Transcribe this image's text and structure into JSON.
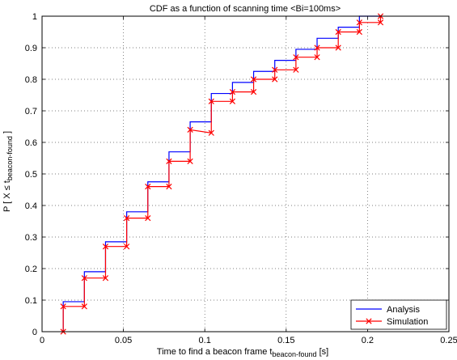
{
  "chart_data": {
    "type": "line",
    "title": "CDF as a function of scanning time <Bi=100ms>",
    "xlabel": "Time to find a beacon frame t",
    "xlabel_sub": "beacon-found",
    "xlabel_unit": " [s]",
    "ylabel_pre": "P [ X ≤ t",
    "ylabel_sub": "beacon-found",
    "ylabel_post": " ]",
    "xlim": [
      0,
      0.25
    ],
    "ylim": [
      0,
      1
    ],
    "xticks": [
      0,
      0.05,
      0.1,
      0.15,
      0.2,
      0.25
    ],
    "xtick_labels": [
      "0",
      "0.05",
      "0.1",
      "0.15",
      "0.2",
      "0.25"
    ],
    "yticks": [
      0,
      0.1,
      0.2,
      0.3,
      0.4,
      0.5,
      0.6,
      0.7,
      0.8,
      0.9,
      1
    ],
    "ytick_labels": [
      "0",
      "0.1",
      "0.2",
      "0.3",
      "0.4",
      "0.5",
      "0.6",
      "0.7",
      "0.8",
      "0.9",
      "1"
    ],
    "grid": true,
    "legend_position": "bottom-right",
    "series": [
      {
        "name": "Analysis",
        "color": "#0000ff",
        "marker": "none",
        "style": "step",
        "x": [
          0.013,
          0.026,
          0.039,
          0.052,
          0.065,
          0.078,
          0.091,
          0.104,
          0.117,
          0.13,
          0.143,
          0.156,
          0.169,
          0.182,
          0.195,
          0.208
        ],
        "y": [
          0.095,
          0.19,
          0.285,
          0.38,
          0.475,
          0.57,
          0.665,
          0.755,
          0.79,
          0.825,
          0.86,
          0.895,
          0.93,
          0.965,
          1.0,
          1.0
        ]
      },
      {
        "name": "Simulation",
        "color": "#ff0000",
        "marker": "x",
        "style": "step",
        "x": [
          0.013,
          0.013,
          0.026,
          0.026,
          0.039,
          0.039,
          0.052,
          0.052,
          0.065,
          0.065,
          0.078,
          0.078,
          0.091,
          0.091,
          0.104,
          0.104,
          0.117,
          0.117,
          0.13,
          0.13,
          0.143,
          0.143,
          0.156,
          0.156,
          0.169,
          0.169,
          0.182,
          0.182,
          0.195,
          0.195,
          0.208,
          0.208
        ],
        "y": [
          0.0,
          0.08,
          0.08,
          0.17,
          0.17,
          0.27,
          0.27,
          0.36,
          0.36,
          0.46,
          0.46,
          0.54,
          0.54,
          0.64,
          0.63,
          0.73,
          0.73,
          0.76,
          0.76,
          0.8,
          0.8,
          0.83,
          0.83,
          0.87,
          0.87,
          0.9,
          0.9,
          0.95,
          0.95,
          0.98,
          0.98,
          1.0
        ]
      }
    ]
  }
}
